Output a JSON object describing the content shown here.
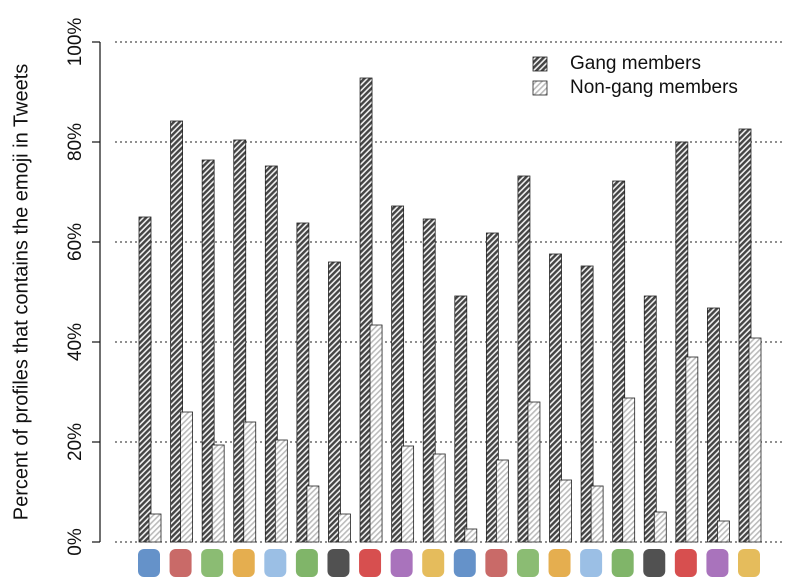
{
  "chart_data": {
    "type": "bar",
    "y_label": "Percent of profiles that contains the emoji in Tweets",
    "categories": [
      null,
      null,
      null,
      null,
      null,
      null,
      null,
      null,
      null,
      null,
      null,
      null,
      null,
      null,
      null,
      null,
      null,
      null,
      null,
      null
    ],
    "series": [
      {
        "name": "Gang members",
        "color": "#444444",
        "values": [
          65,
          84.2,
          76.4,
          80.4,
          75.2,
          63.8,
          56,
          92.8,
          67.2,
          64.6,
          49.2,
          61.8,
          73.2,
          57.6,
          55.2,
          72.2,
          49.2,
          80,
          46.8,
          82.6
        ]
      },
      {
        "name": "Non-gang members",
        "color": "#bbbbbb",
        "values": [
          5.6,
          26,
          19.4,
          24,
          20.4,
          11.2,
          5.6,
          43.4,
          19.2,
          17.6,
          2.6,
          16.4,
          28,
          12.4,
          11.2,
          28.8,
          6,
          37,
          4.2,
          40.8
        ]
      }
    ],
    "ylim": [
      0,
      100
    ],
    "yticks": [
      {
        "value": 0,
        "label": "0%"
      },
      {
        "value": 20,
        "label": "20%"
      },
      {
        "value": 40,
        "label": "40%"
      },
      {
        "value": 60,
        "label": "60%"
      },
      {
        "value": 80,
        "label": "80%"
      },
      {
        "value": 100,
        "label": "100%"
      }
    ],
    "grid": true,
    "legend": "top-right"
  }
}
